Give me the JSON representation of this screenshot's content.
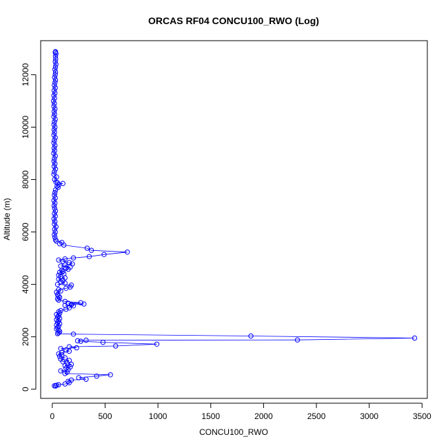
{
  "chart_data": {
    "type": "scatter",
    "title": "ORCAS RF04 CONCU100_RWO (Log)",
    "xlabel": "CONCU100_RWO",
    "ylabel": "Altitude (m)",
    "xlim": [
      -110,
      3550
    ],
    "ylim": [
      -350,
      13300
    ],
    "x_ticks": [
      0,
      500,
      1000,
      1500,
      2000,
      2500,
      3000,
      3500
    ],
    "y_ticks": [
      0,
      2000,
      4000,
      6000,
      8000,
      10000,
      12000
    ],
    "grid": false,
    "legend": "none",
    "series": [
      {
        "color": "#0000ff",
        "marker": "open-circle",
        "connected": true,
        "points": [
          [
            30,
            12880
          ],
          [
            28,
            12850
          ],
          [
            35,
            12800
          ],
          [
            30,
            12700
          ],
          [
            32,
            12600
          ],
          [
            28,
            12500
          ],
          [
            35,
            12400
          ],
          [
            30,
            12300
          ],
          [
            25,
            12200
          ],
          [
            30,
            12100
          ],
          [
            28,
            12000
          ],
          [
            22,
            11900
          ],
          [
            30,
            11800
          ],
          [
            26,
            11700
          ],
          [
            20,
            11600
          ],
          [
            28,
            11500
          ],
          [
            18,
            11400
          ],
          [
            25,
            11300
          ],
          [
            15,
            11200
          ],
          [
            22,
            11100
          ],
          [
            12,
            11000
          ],
          [
            20,
            10900
          ],
          [
            15,
            10800
          ],
          [
            25,
            10700
          ],
          [
            18,
            10600
          ],
          [
            22,
            10500
          ],
          [
            15,
            10400
          ],
          [
            28,
            10300
          ],
          [
            20,
            10200
          ],
          [
            16,
            10100
          ],
          [
            25,
            10000
          ],
          [
            18,
            9900
          ],
          [
            22,
            9800
          ],
          [
            15,
            9700
          ],
          [
            28,
            9600
          ],
          [
            20,
            9500
          ],
          [
            15,
            9400
          ],
          [
            25,
            9300
          ],
          [
            18,
            9200
          ],
          [
            22,
            9100
          ],
          [
            14,
            9000
          ],
          [
            28,
            8900
          ],
          [
            20,
            8800
          ],
          [
            16,
            8700
          ],
          [
            25,
            8600
          ],
          [
            18,
            8500
          ],
          [
            30,
            8400
          ],
          [
            20,
            8300
          ],
          [
            15,
            8200
          ],
          [
            40,
            8100
          ],
          [
            22,
            8000
          ],
          [
            35,
            7900
          ],
          [
            50,
            7880
          ],
          [
            100,
            7850
          ],
          [
            60,
            7800
          ],
          [
            45,
            7750
          ],
          [
            55,
            7700
          ],
          [
            30,
            7600
          ],
          [
            25,
            7500
          ],
          [
            20,
            7400
          ],
          [
            28,
            7300
          ],
          [
            15,
            7200
          ],
          [
            25,
            7100
          ],
          [
            18,
            7000
          ],
          [
            22,
            6900
          ],
          [
            30,
            6800
          ],
          [
            20,
            6700
          ],
          [
            28,
            6600
          ],
          [
            16,
            6500
          ],
          [
            25,
            6400
          ],
          [
            20,
            6300
          ],
          [
            35,
            6200
          ],
          [
            22,
            6100
          ],
          [
            28,
            6000
          ],
          [
            20,
            5900
          ],
          [
            25,
            5800
          ],
          [
            30,
            5700
          ],
          [
            40,
            5650
          ],
          [
            90,
            5600
          ],
          [
            70,
            5550
          ],
          [
            110,
            5500
          ],
          [
            330,
            5380
          ],
          [
            370,
            5300
          ],
          [
            710,
            5230
          ],
          [
            490,
            5140
          ],
          [
            350,
            5060
          ],
          [
            200,
            5010
          ],
          [
            120,
            4970
          ],
          [
            60,
            4930
          ],
          [
            100,
            4880
          ],
          [
            160,
            4830
          ],
          [
            190,
            4780
          ],
          [
            120,
            4740
          ],
          [
            80,
            4700
          ],
          [
            170,
            4660
          ],
          [
            130,
            4620
          ],
          [
            150,
            4580
          ],
          [
            90,
            4540
          ],
          [
            100,
            4500
          ],
          [
            70,
            4460
          ],
          [
            110,
            4400
          ],
          [
            60,
            4350
          ],
          [
            80,
            4300
          ],
          [
            120,
            4250
          ],
          [
            60,
            4200
          ],
          [
            100,
            4150
          ],
          [
            80,
            4100
          ],
          [
            120,
            4050
          ],
          [
            50,
            4000
          ],
          [
            180,
            3970
          ],
          [
            170,
            3900
          ],
          [
            130,
            3850
          ],
          [
            60,
            3800
          ],
          [
            80,
            3750
          ],
          [
            40,
            3700
          ],
          [
            50,
            3600
          ],
          [
            60,
            3550
          ],
          [
            70,
            3500
          ],
          [
            50,
            3450
          ],
          [
            60,
            3400
          ],
          [
            120,
            3350
          ],
          [
            270,
            3300
          ],
          [
            150,
            3280
          ],
          [
            300,
            3250
          ],
          [
            180,
            3220
          ],
          [
            120,
            3200
          ],
          [
            200,
            3180
          ],
          [
            160,
            3100
          ],
          [
            130,
            3050
          ],
          [
            80,
            3000
          ],
          [
            60,
            2950
          ],
          [
            70,
            2900
          ],
          [
            40,
            2850
          ],
          [
            60,
            2800
          ],
          [
            50,
            2750
          ],
          [
            70,
            2700
          ],
          [
            40,
            2650
          ],
          [
            60,
            2600
          ],
          [
            50,
            2550
          ],
          [
            70,
            2500
          ],
          [
            40,
            2450
          ],
          [
            60,
            2400
          ],
          [
            50,
            2350
          ],
          [
            40,
            2300
          ],
          [
            60,
            2250
          ],
          [
            70,
            2200
          ],
          [
            60,
            2150
          ],
          [
            50,
            2120
          ],
          [
            200,
            2100
          ],
          [
            1880,
            2030
          ],
          [
            3430,
            1950
          ],
          [
            2320,
            1880
          ],
          [
            320,
            1870
          ],
          [
            240,
            1850
          ],
          [
            270,
            1830
          ],
          [
            480,
            1790
          ],
          [
            990,
            1720
          ],
          [
            600,
            1650
          ],
          [
            160,
            1620
          ],
          [
            230,
            1580
          ],
          [
            80,
            1550
          ],
          [
            130,
            1500
          ],
          [
            160,
            1450
          ],
          [
            90,
            1400
          ],
          [
            60,
            1350
          ],
          [
            90,
            1300
          ],
          [
            70,
            1250
          ],
          [
            120,
            1200
          ],
          [
            80,
            1150
          ],
          [
            160,
            1100
          ],
          [
            100,
            1050
          ],
          [
            140,
            1000
          ],
          [
            180,
            950
          ],
          [
            120,
            900
          ],
          [
            170,
            850
          ],
          [
            130,
            800
          ],
          [
            150,
            750
          ],
          [
            80,
            700
          ],
          [
            140,
            650
          ],
          [
            120,
            600
          ],
          [
            550,
            550
          ],
          [
            420,
            500
          ],
          [
            250,
            440
          ],
          [
            320,
            380
          ],
          [
            180,
            350
          ],
          [
            150,
            300
          ],
          [
            160,
            250
          ],
          [
            120,
            200
          ],
          [
            60,
            170
          ],
          [
            40,
            150
          ],
          [
            20,
            130
          ],
          [
            30,
            120
          ]
        ]
      }
    ]
  }
}
